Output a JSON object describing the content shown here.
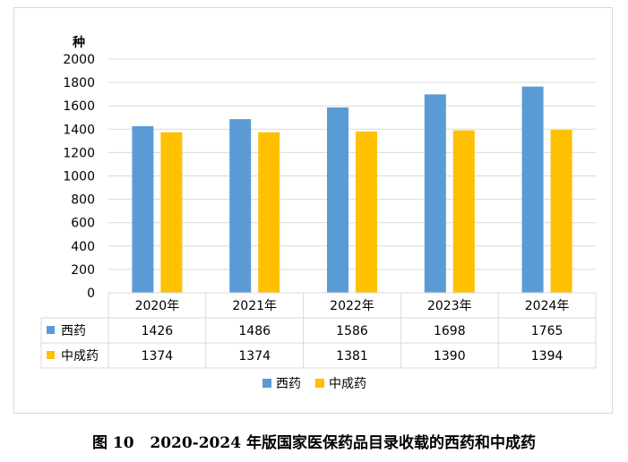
{
  "chart_data": {
    "type": "bar",
    "ylabel": "种",
    "ylim": [
      0,
      2000
    ],
    "yticks": [
      0,
      200,
      400,
      600,
      800,
      1000,
      1200,
      1400,
      1600,
      1800,
      2000
    ],
    "categories": [
      "2020年",
      "2021年",
      "2022年",
      "2023年",
      "2024年"
    ],
    "series": [
      {
        "name": "西药",
        "values": [
          1426,
          1486,
          1586,
          1698,
          1765
        ],
        "color": "#5b9bd5"
      },
      {
        "name": "中成药",
        "values": [
          1374,
          1374,
          1381,
          1390,
          1394
        ],
        "color": "#ffc000"
      }
    ],
    "grid": true,
    "data_table": true,
    "legend": "bottom"
  },
  "caption": {
    "number": "图 10",
    "title": "2020-2024 年版国家医保药品目录收载的西药和中成药"
  },
  "colors": {
    "grid": "#d9d9d9",
    "axis_text": "#000000"
  }
}
